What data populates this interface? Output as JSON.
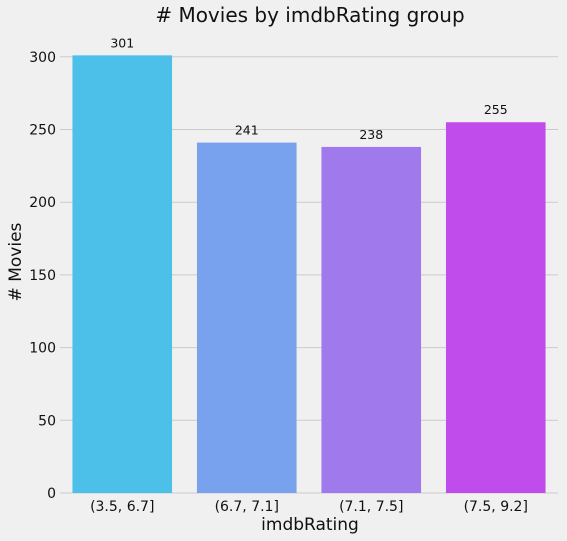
{
  "chart_data": {
    "type": "bar",
    "title": "# Movies by imdbRating group",
    "xlabel": "imdbRating",
    "ylabel": "# Movies",
    "categories": [
      "(3.5, 6.7]",
      "(6.7, 7.1]",
      "(7.1, 7.5]",
      "(7.5, 9.2]"
    ],
    "values": [
      301,
      241,
      238,
      255
    ],
    "data_labels": [
      "301",
      "241",
      "238",
      "255"
    ],
    "ylim": [
      0,
      315
    ],
    "yticks": [
      0,
      50,
      100,
      150,
      200,
      250,
      300
    ],
    "ytick_labels": [
      "0",
      "50",
      "100",
      "150",
      "200",
      "250",
      "300"
    ],
    "grid": "horizontal",
    "colors": [
      "#4cc0e9",
      "#78a1ee",
      "#a07aec",
      "#c04ceb"
    ],
    "background": "#f0f0f0"
  }
}
